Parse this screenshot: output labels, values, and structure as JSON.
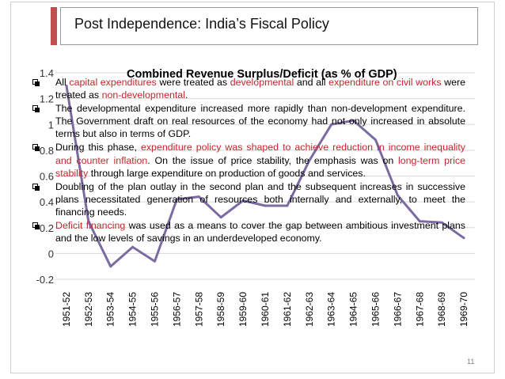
{
  "slide": {
    "title": "Post Independence: India’s Fiscal Policy",
    "page_number": "11",
    "accent_color": "#c0504d",
    "highlight_color": "#c0282d"
  },
  "chart_data": {
    "type": "line",
    "title": "Combined Revenue Surplus/Deficit (as % of GDP)",
    "categories": [
      "1951-52",
      "1952-53",
      "1953-54",
      "1954-55",
      "1955-56",
      "1956-57",
      "1957-58",
      "1958-59",
      "1959-60",
      "1960-61",
      "1961-62",
      "1962-63",
      "1963-64",
      "1964-65",
      "1965-66",
      "1966-67",
      "1967-68",
      "1968-69",
      "1969-70"
    ],
    "series": [
      {
        "values": [
          1.3,
          0.25,
          -0.1,
          0.05,
          -0.06,
          0.42,
          0.44,
          0.28,
          0.41,
          0.37,
          0.37,
          0.72,
          1.0,
          1.03,
          0.88,
          0.45,
          0.25,
          0.24,
          0.12
        ]
      }
    ],
    "line_color": "#7b6ba1",
    "ylim": [
      -0.2,
      1.4
    ],
    "yticks": [
      -0.2,
      0,
      0.2,
      0.4,
      0.6,
      0.8,
      1,
      1.2,
      1.4
    ],
    "ytick_labels": [
      "-0.2",
      "0",
      "0.2",
      "0.4",
      "0.6",
      "0.8",
      "1",
      "1.2",
      "1.4"
    ],
    "grid": true,
    "xlabel": "",
    "ylabel": ""
  },
  "bullets": [
    {
      "parts": [
        {
          "text": "All ",
          "hl": false
        },
        {
          "text": "capital expenditures",
          "hl": true
        },
        {
          "text": " were treated as ",
          "hl": false
        },
        {
          "text": "developmental",
          "hl": true
        },
        {
          "text": " and all ",
          "hl": false
        },
        {
          "text": "expenditure on civil works",
          "hl": true
        },
        {
          "text": " were treated as ",
          "hl": false
        },
        {
          "text": "non-developmental",
          "hl": true
        },
        {
          "text": ".",
          "hl": false
        }
      ]
    },
    {
      "parts": [
        {
          "text": "The developmental expenditure increased more rapidly than non-development expenditure. The Government draft on real resources of the economy had not only increased in absolute terms but also in terms of GDP.",
          "hl": false
        }
      ]
    },
    {
      "parts": [
        {
          "text": "During this phase, ",
          "hl": false
        },
        {
          "text": "expenditure policy was shaped to achieve reduction in income inequality and counter inflation",
          "hl": true
        },
        {
          "text": ". On the issue of price stability, the emphasis was on ",
          "hl": false
        },
        {
          "text": "long-term price stability",
          "hl": true
        },
        {
          "text": " through large expenditure on production of goods and services.",
          "hl": false
        }
      ]
    },
    {
      "parts": [
        {
          "text": " Doubling of the plan outlay in the second plan and the subsequent increases in successive plans necessitated generation of resources both internally and externally, to meet the financing needs.",
          "hl": false
        }
      ]
    },
    {
      "parts": [
        {
          "text": "Deficit financing",
          "hl": true
        },
        {
          "text": " was used as a means to cover the gap between ambitious investment plans and the low levels of savings in an underdeveloped economy.",
          "hl": false
        }
      ]
    }
  ]
}
